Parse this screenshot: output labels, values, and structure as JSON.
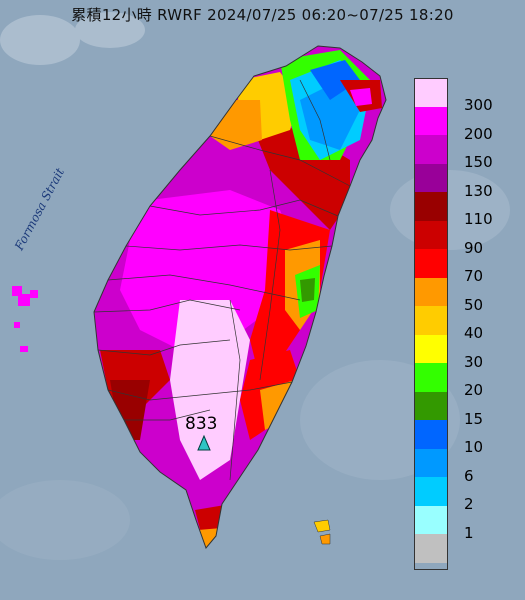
{
  "title": "累積12小時 RWRF 2024/07/25 06:20~07/25 18:20",
  "strait_label": "Formosa Strait",
  "max_marker": {
    "value": "833",
    "icon": "triangle-icon"
  },
  "legend": {
    "items": [
      {
        "label": "300",
        "color": "#ffccff"
      },
      {
        "label": "200",
        "color": "#ff00ff"
      },
      {
        "label": "150",
        "color": "#cc00cc"
      },
      {
        "label": "130",
        "color": "#990099"
      },
      {
        "label": "110",
        "color": "#990000"
      },
      {
        "label": "90",
        "color": "#cc0000"
      },
      {
        "label": "70",
        "color": "#ff0000"
      },
      {
        "label": "50",
        "color": "#ff9900"
      },
      {
        "label": "40",
        "color": "#ffcc00"
      },
      {
        "label": "30",
        "color": "#ffff00"
      },
      {
        "label": "20",
        "color": "#33ff00"
      },
      {
        "label": "15",
        "color": "#339900"
      },
      {
        "label": "10",
        "color": "#0066ff"
      },
      {
        "label": "6",
        "color": "#0099ff"
      },
      {
        "label": "2",
        "color": "#00ccff"
      },
      {
        "label": "1",
        "color": "#99ffff"
      },
      {
        "label": "",
        "color": "#c0c0c0"
      }
    ]
  },
  "colors": {
    "sea": "#8fa7bd",
    "land_base": "#cc00cc"
  }
}
